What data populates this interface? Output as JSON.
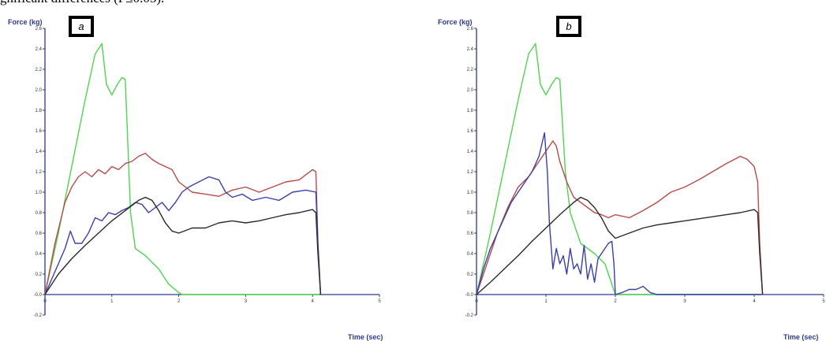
{
  "caption": "gnificant differences (P≤0.05).",
  "colors": {
    "green": "#4fd44f",
    "red": "#b84a4a",
    "blue": "#3a3fa8",
    "black": "#2a2a2a",
    "axis": "#2b3a8c"
  },
  "chart_data": [
    {
      "type": "line",
      "panel_label": "a",
      "ylabel": "Force (kg)",
      "xlabel": "Time (sec)",
      "xlim": [
        0,
        5
      ],
      "ylim": [
        -0.2,
        2.6
      ],
      "xticks": [
        "0",
        "1",
        "2",
        "3",
        "4",
        "5"
      ],
      "yticks": [
        "-0.2",
        "-0.0",
        "0.2",
        "0.4",
        "0.6",
        "0.8",
        "1.0",
        "1.2",
        "1.4",
        "1.6",
        "1.8",
        "2.0",
        "2.2",
        "2.4",
        "2.6"
      ],
      "series": [
        {
          "color": "green",
          "x": [
            0,
            0.2,
            0.4,
            0.6,
            0.75,
            0.85,
            0.92,
            1.0,
            1.08,
            1.15,
            1.2,
            1.28,
            1.35,
            1.5,
            1.7,
            1.85,
            2.0,
            2.05,
            2.5,
            3.0,
            3.5,
            4.0,
            4.1
          ],
          "y": [
            0,
            0.6,
            1.25,
            1.9,
            2.35,
            2.45,
            2.05,
            1.95,
            2.05,
            2.12,
            2.1,
            0.8,
            0.45,
            0.38,
            0.25,
            0.1,
            0.02,
            0,
            0,
            0,
            0,
            0,
            0
          ]
        },
        {
          "color": "red",
          "x": [
            0,
            0.15,
            0.3,
            0.4,
            0.5,
            0.6,
            0.7,
            0.8,
            0.9,
            1.0,
            1.1,
            1.2,
            1.3,
            1.4,
            1.5,
            1.6,
            1.7,
            1.8,
            1.9,
            2.0,
            2.1,
            2.2,
            2.4,
            2.6,
            2.8,
            3.0,
            3.2,
            3.4,
            3.6,
            3.8,
            4.0,
            4.05,
            4.08,
            4.12
          ],
          "y": [
            0,
            0.5,
            0.9,
            1.05,
            1.15,
            1.2,
            1.15,
            1.22,
            1.18,
            1.25,
            1.22,
            1.28,
            1.3,
            1.35,
            1.38,
            1.32,
            1.28,
            1.25,
            1.22,
            1.1,
            1.05,
            1.0,
            0.98,
            0.96,
            1.02,
            1.05,
            1.0,
            1.05,
            1.1,
            1.12,
            1.22,
            1.2,
            0.5,
            0
          ]
        },
        {
          "color": "blue",
          "x": [
            0,
            0.1,
            0.2,
            0.3,
            0.38,
            0.45,
            0.55,
            0.65,
            0.75,
            0.85,
            0.95,
            1.05,
            1.15,
            1.25,
            1.35,
            1.45,
            1.55,
            1.65,
            1.75,
            1.85,
            1.95,
            2.05,
            2.15,
            2.3,
            2.45,
            2.6,
            2.7,
            2.8,
            2.95,
            3.1,
            3.3,
            3.5,
            3.7,
            3.9,
            4.05,
            4.08,
            4.12
          ],
          "y": [
            0,
            0.15,
            0.3,
            0.45,
            0.62,
            0.5,
            0.5,
            0.6,
            0.75,
            0.72,
            0.8,
            0.78,
            0.82,
            0.85,
            0.9,
            0.88,
            0.8,
            0.85,
            0.9,
            0.82,
            0.9,
            1.0,
            1.05,
            1.1,
            1.15,
            1.12,
            1.0,
            0.95,
            0.98,
            0.92,
            0.95,
            0.92,
            1.0,
            1.02,
            1.0,
            0.5,
            0
          ]
        },
        {
          "color": "black",
          "x": [
            0,
            0.2,
            0.4,
            0.6,
            0.8,
            1.0,
            1.2,
            1.4,
            1.5,
            1.6,
            1.7,
            1.8,
            1.9,
            2.0,
            2.2,
            2.4,
            2.6,
            2.8,
            3.0,
            3.2,
            3.4,
            3.6,
            3.8,
            4.0,
            4.05,
            4.08,
            4.12
          ],
          "y": [
            0,
            0.2,
            0.35,
            0.48,
            0.6,
            0.72,
            0.82,
            0.92,
            0.95,
            0.92,
            0.82,
            0.7,
            0.62,
            0.6,
            0.65,
            0.65,
            0.7,
            0.72,
            0.7,
            0.72,
            0.75,
            0.78,
            0.8,
            0.83,
            0.8,
            0.4,
            0
          ]
        }
      ]
    },
    {
      "type": "line",
      "panel_label": "b",
      "ylabel": "Force (kg)",
      "xlabel": "Time (sec)",
      "xlim": [
        0,
        5
      ],
      "ylim": [
        -0.2,
        2.6
      ],
      "xticks": [
        "0",
        "1",
        "2",
        "3",
        "4",
        "5"
      ],
      "yticks": [
        "-0.2",
        "-0.0",
        "0.2",
        "0.4",
        "0.6",
        "0.8",
        "1.0",
        "1.2",
        "1.4",
        "1.6",
        "1.8",
        "2.0",
        "2.2",
        "2.4",
        "2.6"
      ],
      "series": [
        {
          "color": "green",
          "x": [
            0,
            0.2,
            0.4,
            0.6,
            0.75,
            0.85,
            0.92,
            1.0,
            1.08,
            1.15,
            1.2,
            1.28,
            1.35,
            1.5,
            1.7,
            1.85,
            1.95,
            2.0,
            2.5,
            3.0,
            3.5,
            4.0,
            4.1
          ],
          "y": [
            0,
            0.6,
            1.25,
            1.9,
            2.35,
            2.45,
            2.05,
            1.95,
            2.05,
            2.12,
            2.1,
            1.2,
            0.8,
            0.5,
            0.4,
            0.3,
            0.1,
            0,
            0,
            0,
            0,
            0,
            0
          ]
        },
        {
          "color": "red",
          "x": [
            0,
            0.15,
            0.3,
            0.45,
            0.6,
            0.75,
            0.9,
            1.0,
            1.1,
            1.15,
            1.2,
            1.3,
            1.4,
            1.5,
            1.6,
            1.7,
            1.8,
            1.9,
            2.0,
            2.2,
            2.4,
            2.6,
            2.8,
            3.0,
            3.2,
            3.4,
            3.6,
            3.8,
            3.9,
            4.0,
            4.05,
            4.08,
            4.12
          ],
          "y": [
            0,
            0.3,
            0.6,
            0.85,
            1.05,
            1.15,
            1.3,
            1.4,
            1.5,
            1.45,
            1.3,
            1.1,
            0.95,
            0.9,
            0.85,
            0.8,
            0.78,
            0.75,
            0.78,
            0.75,
            0.82,
            0.9,
            1.0,
            1.05,
            1.12,
            1.2,
            1.28,
            1.35,
            1.32,
            1.25,
            1.1,
            0.5,
            0
          ]
        },
        {
          "color": "blue",
          "x": [
            0,
            0.1,
            0.2,
            0.3,
            0.4,
            0.5,
            0.6,
            0.7,
            0.8,
            0.9,
            0.98,
            1.02,
            1.05,
            1.1,
            1.15,
            1.2,
            1.25,
            1.3,
            1.35,
            1.4,
            1.45,
            1.5,
            1.55,
            1.6,
            1.65,
            1.7,
            1.75,
            1.8,
            1.85,
            1.9,
            1.95,
            1.98,
            2.0,
            2.1,
            2.2,
            2.3,
            2.4,
            2.5,
            2.6,
            3.0,
            4.0,
            4.1
          ],
          "y": [
            0,
            0.25,
            0.45,
            0.6,
            0.75,
            0.9,
            1.0,
            1.1,
            1.2,
            1.35,
            1.58,
            1.2,
            0.7,
            0.25,
            0.45,
            0.3,
            0.38,
            0.2,
            0.45,
            0.25,
            0.3,
            0.2,
            0.48,
            0.15,
            0.3,
            0.12,
            0.35,
            0.4,
            0.45,
            0.5,
            0.52,
            0.3,
            0,
            0.02,
            0.05,
            0.05,
            0.08,
            0.02,
            0,
            0,
            0,
            0
          ]
        },
        {
          "color": "black",
          "x": [
            0,
            0.2,
            0.4,
            0.6,
            0.8,
            1.0,
            1.2,
            1.4,
            1.5,
            1.6,
            1.7,
            1.8,
            1.9,
            2.0,
            2.2,
            2.4,
            2.6,
            2.8,
            3.0,
            3.2,
            3.4,
            3.6,
            3.8,
            4.0,
            4.05,
            4.08,
            4.12
          ],
          "y": [
            0,
            0.12,
            0.25,
            0.38,
            0.52,
            0.65,
            0.78,
            0.9,
            0.95,
            0.92,
            0.85,
            0.75,
            0.62,
            0.55,
            0.6,
            0.65,
            0.68,
            0.7,
            0.72,
            0.74,
            0.76,
            0.78,
            0.8,
            0.83,
            0.8,
            0.4,
            0
          ]
        }
      ]
    }
  ]
}
